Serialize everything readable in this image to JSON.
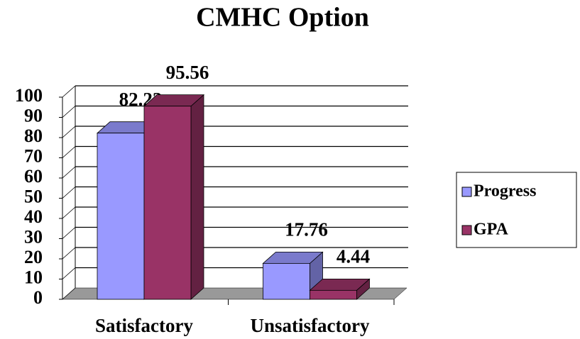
{
  "chart_data": {
    "type": "bar3d",
    "title": "CMHC Option",
    "categories": [
      "Satisfactory",
      "Unsatisfactory"
    ],
    "series": [
      {
        "name": "Progress",
        "color": "#9999ff",
        "values": [
          82.22,
          17.76
        ]
      },
      {
        "name": "GPA",
        "color": "#993366",
        "values": [
          95.56,
          4.44
        ]
      }
    ],
    "ylim": [
      0,
      100
    ],
    "yticks": [
      0,
      10,
      20,
      30,
      40,
      50,
      60,
      70,
      80,
      90,
      100
    ],
    "grid": true,
    "legend": "right"
  }
}
